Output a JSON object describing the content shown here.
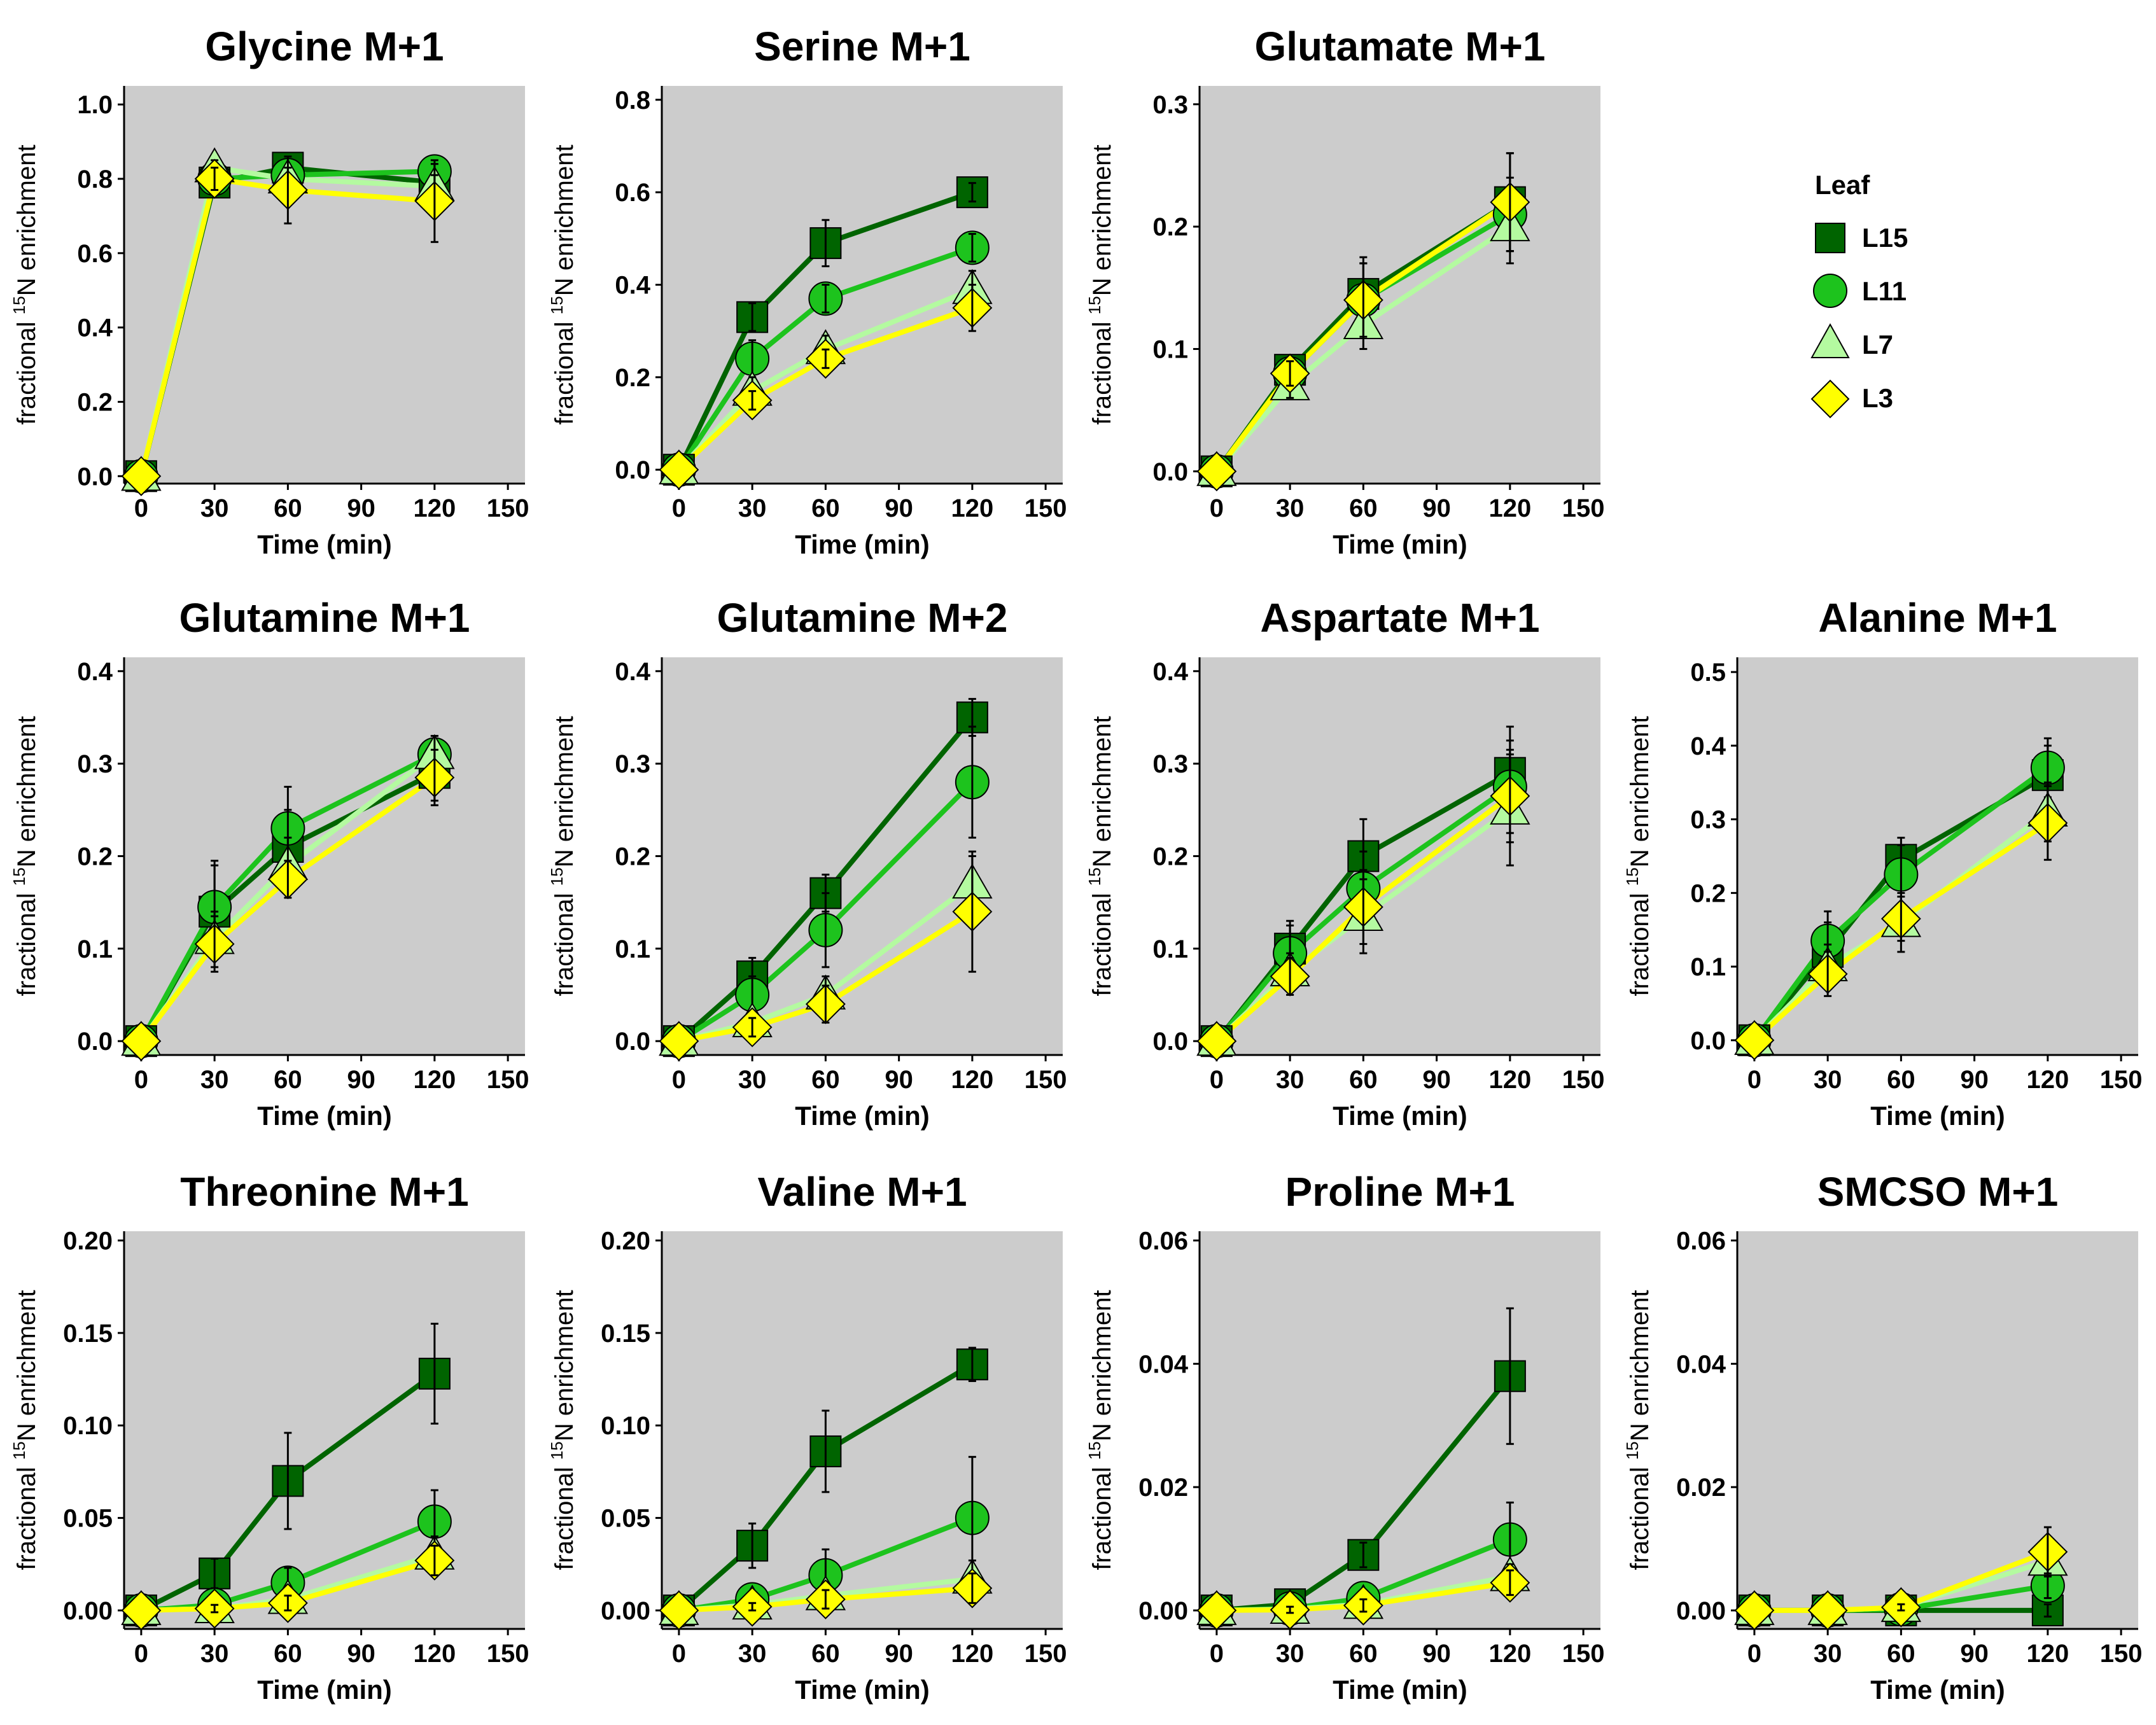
{
  "legend": {
    "title": "Leaf",
    "items": [
      {
        "key": "L15",
        "label": "L15",
        "color": "#006400",
        "shape": "square"
      },
      {
        "key": "L11",
        "label": "L11",
        "color": "#1DC31D",
        "shape": "circle"
      },
      {
        "key": "L7",
        "label": "L7",
        "color": "#B4FAA0",
        "shape": "triangle"
      },
      {
        "key": "L3",
        "label": "L3",
        "color": "#FFFF00",
        "shape": "diamond"
      }
    ]
  },
  "colors": {
    "panel_bg": "#CCCCCC",
    "page_bg": "#FFFFFF",
    "error_bar": "#000000"
  },
  "chart_data": [
    {
      "type": "line",
      "title": "Glycine M+1",
      "xlabel": "Time (min)",
      "ylabel_prefix": "fractional ",
      "ylabel_sup": "15",
      "ylabel_suffix": "N enrichment",
      "x": [
        0,
        30,
        60,
        120
      ],
      "xticks": [
        0,
        30,
        60,
        90,
        120,
        150
      ],
      "xlim": [
        -7,
        157
      ],
      "yticks": [
        0.0,
        0.2,
        0.4,
        0.6,
        0.8,
        1.0
      ],
      "ytick_labels": [
        "0.0",
        "0.2",
        "0.4",
        "0.6",
        "0.8",
        "1.0"
      ],
      "ylim": [
        -0.02,
        1.05
      ],
      "series": [
        {
          "name": "L15",
          "values": [
            0.0,
            0.79,
            0.83,
            0.79
          ],
          "errors": [
            0,
            0.02,
            0.02,
            0.02
          ]
        },
        {
          "name": "L11",
          "values": [
            0.0,
            0.8,
            0.81,
            0.82
          ],
          "errors": [
            0,
            0.02,
            0.02,
            0.02
          ]
        },
        {
          "name": "L7",
          "values": [
            0.0,
            0.83,
            0.8,
            0.78
          ],
          "errors": [
            0,
            0.02,
            0.03,
            0.03
          ]
        },
        {
          "name": "L3",
          "values": [
            0.0,
            0.8,
            0.77,
            0.74
          ],
          "errors": [
            0,
            0.03,
            0.09,
            0.11
          ]
        }
      ]
    },
    {
      "type": "line",
      "title": "Serine M+1",
      "xlabel": "Time (min)",
      "ylabel_prefix": "fractional ",
      "ylabel_sup": "15",
      "ylabel_suffix": "N enrichment",
      "x": [
        0,
        30,
        60,
        120
      ],
      "xticks": [
        0,
        30,
        60,
        90,
        120,
        150
      ],
      "xlim": [
        -7,
        157
      ],
      "yticks": [
        0.0,
        0.2,
        0.4,
        0.6,
        0.8
      ],
      "ytick_labels": [
        "0.0",
        "0.2",
        "0.4",
        "0.6",
        "0.8"
      ],
      "ylim": [
        -0.03,
        0.83
      ],
      "series": [
        {
          "name": "L15",
          "values": [
            0.0,
            0.33,
            0.49,
            0.6
          ],
          "errors": [
            0,
            0.03,
            0.05,
            0.02
          ]
        },
        {
          "name": "L11",
          "values": [
            0.0,
            0.24,
            0.37,
            0.48
          ],
          "errors": [
            0,
            0.04,
            0.03,
            0.03
          ]
        },
        {
          "name": "L7",
          "values": [
            0.0,
            0.17,
            0.26,
            0.39
          ],
          "errors": [
            0,
            0.03,
            0.03,
            0.04
          ]
        },
        {
          "name": "L3",
          "values": [
            0.0,
            0.15,
            0.24,
            0.35
          ],
          "errors": [
            0,
            0.02,
            0.02,
            0.05
          ]
        }
      ]
    },
    {
      "type": "line",
      "title": "Glutamate M+1",
      "xlabel": "Time (min)",
      "ylabel_prefix": "fractional ",
      "ylabel_sup": "15",
      "ylabel_suffix": "N enrichment",
      "x": [
        0,
        30,
        60,
        120
      ],
      "xticks": [
        0,
        30,
        60,
        90,
        120,
        150
      ],
      "xlim": [
        -7,
        157
      ],
      "yticks": [
        0.0,
        0.1,
        0.2,
        0.3
      ],
      "ytick_labels": [
        "0.0",
        "0.1",
        "0.2",
        "0.3"
      ],
      "ylim": [
        -0.01,
        0.315
      ],
      "series": [
        {
          "name": "L15",
          "values": [
            0.0,
            0.083,
            0.145,
            0.22
          ],
          "errors": [
            0,
            0.01,
            0.03,
            0.04
          ]
        },
        {
          "name": "L11",
          "values": [
            0.0,
            0.08,
            0.14,
            0.21
          ],
          "errors": [
            0,
            0.01,
            0.03,
            0.03
          ]
        },
        {
          "name": "L7",
          "values": [
            0.0,
            0.07,
            0.12,
            0.2
          ],
          "errors": [
            0,
            0.01,
            0.02,
            0.03
          ]
        },
        {
          "name": "L3",
          "values": [
            0.0,
            0.08,
            0.14,
            0.22
          ],
          "errors": [
            0,
            0.01,
            0.03,
            0.04
          ]
        }
      ]
    },
    {
      "type": "line",
      "title": "Glutamine M+1",
      "xlabel": "Time (min)",
      "ylabel_prefix": "fractional ",
      "ylabel_sup": "15",
      "ylabel_suffix": "N enrichment",
      "x": [
        0,
        30,
        60,
        120
      ],
      "xticks": [
        0,
        30,
        60,
        90,
        120,
        150
      ],
      "xlim": [
        -7,
        157
      ],
      "yticks": [
        0.0,
        0.1,
        0.2,
        0.3,
        0.4
      ],
      "ytick_labels": [
        "0.0",
        "0.1",
        "0.2",
        "0.3",
        "0.4"
      ],
      "ylim": [
        -0.015,
        0.415
      ],
      "series": [
        {
          "name": "L15",
          "values": [
            0.0,
            0.14,
            0.21,
            0.29
          ],
          "errors": [
            0,
            0.05,
            0.04,
            0.03
          ]
        },
        {
          "name": "L11",
          "values": [
            0.0,
            0.145,
            0.23,
            0.31
          ],
          "errors": [
            0,
            0.05,
            0.045,
            0.02
          ]
        },
        {
          "name": "L7",
          "values": [
            0.0,
            0.11,
            0.19,
            0.31
          ],
          "errors": [
            0,
            0.03,
            0.03,
            0.02
          ]
        },
        {
          "name": "L3",
          "values": [
            0.0,
            0.105,
            0.175,
            0.285
          ],
          "errors": [
            0,
            0.03,
            0.02,
            0.03
          ]
        }
      ]
    },
    {
      "type": "line",
      "title": "Glutamine M+2",
      "xlabel": "Time (min)",
      "ylabel_prefix": "fractional ",
      "ylabel_sup": "15",
      "ylabel_suffix": "N enrichment",
      "x": [
        0,
        30,
        60,
        120
      ],
      "xticks": [
        0,
        30,
        60,
        90,
        120,
        150
      ],
      "xlim": [
        -7,
        157
      ],
      "yticks": [
        0.0,
        0.1,
        0.2,
        0.3,
        0.4
      ],
      "ytick_labels": [
        "0.0",
        "0.1",
        "0.2",
        "0.3",
        "0.4"
      ],
      "ylim": [
        -0.015,
        0.415
      ],
      "series": [
        {
          "name": "L15",
          "values": [
            0.0,
            0.07,
            0.16,
            0.35
          ],
          "errors": [
            0,
            0.02,
            0.02,
            0.02
          ]
        },
        {
          "name": "L11",
          "values": [
            0.0,
            0.05,
            0.12,
            0.28
          ],
          "errors": [
            0,
            0.02,
            0.04,
            0.06
          ]
        },
        {
          "name": "L7",
          "values": [
            0.0,
            0.02,
            0.05,
            0.17
          ],
          "errors": [
            0,
            0.01,
            0.02,
            0.03
          ]
        },
        {
          "name": "L3",
          "values": [
            0.0,
            0.015,
            0.04,
            0.14
          ],
          "errors": [
            0,
            0.01,
            0.02,
            0.065
          ]
        }
      ]
    },
    {
      "type": "line",
      "title": "Aspartate M+1",
      "xlabel": "Time (min)",
      "ylabel_prefix": "fractional ",
      "ylabel_sup": "15",
      "ylabel_suffix": "N enrichment",
      "x": [
        0,
        30,
        60,
        120
      ],
      "xticks": [
        0,
        30,
        60,
        90,
        120,
        150
      ],
      "xlim": [
        -7,
        157
      ],
      "yticks": [
        0.0,
        0.1,
        0.2,
        0.3,
        0.4
      ],
      "ytick_labels": [
        "0.0",
        "0.1",
        "0.2",
        "0.3",
        "0.4"
      ],
      "ylim": [
        -0.015,
        0.415
      ],
      "series": [
        {
          "name": "L15",
          "values": [
            0.0,
            0.1,
            0.2,
            0.29
          ],
          "errors": [
            0,
            0.03,
            0.04,
            0.05
          ]
        },
        {
          "name": "L11",
          "values": [
            0.0,
            0.095,
            0.165,
            0.275
          ],
          "errors": [
            0,
            0.03,
            0.04,
            0.05
          ]
        },
        {
          "name": "L7",
          "values": [
            0.0,
            0.075,
            0.135,
            0.25
          ],
          "errors": [
            0,
            0.02,
            0.04,
            0.06
          ]
        },
        {
          "name": "L3",
          "values": [
            0.0,
            0.07,
            0.145,
            0.265
          ],
          "errors": [
            0,
            0.02,
            0.04,
            0.05
          ]
        }
      ]
    },
    {
      "type": "line",
      "title": "Alanine M+1",
      "xlabel": "Time (min)",
      "ylabel_prefix": "fractional ",
      "ylabel_sup": "15",
      "ylabel_suffix": "N enrichment",
      "x": [
        0,
        30,
        60,
        120
      ],
      "xticks": [
        0,
        30,
        60,
        90,
        120,
        150
      ],
      "xlim": [
        -7,
        157
      ],
      "yticks": [
        0.0,
        0.1,
        0.2,
        0.3,
        0.4,
        0.5
      ],
      "ytick_labels": [
        "0.0",
        "0.1",
        "0.2",
        "0.3",
        "0.4",
        "0.5"
      ],
      "ylim": [
        -0.02,
        0.52
      ],
      "series": [
        {
          "name": "L15",
          "values": [
            0.0,
            0.12,
            0.245,
            0.36
          ],
          "errors": [
            0,
            0.04,
            0.03,
            0.04
          ]
        },
        {
          "name": "L11",
          "values": [
            0.0,
            0.135,
            0.225,
            0.37
          ],
          "errors": [
            0,
            0.04,
            0.04,
            0.04
          ]
        },
        {
          "name": "L7",
          "values": [
            0.0,
            0.1,
            0.16,
            0.31
          ],
          "errors": [
            0,
            0.03,
            0.04,
            0.04
          ]
        },
        {
          "name": "L3",
          "values": [
            0.0,
            0.09,
            0.165,
            0.295
          ],
          "errors": [
            0,
            0.03,
            0.03,
            0.05
          ]
        }
      ]
    },
    {
      "type": "line",
      "title": "Threonine M+1",
      "xlabel": "Time (min)",
      "ylabel_prefix": "fractional ",
      "ylabel_sup": "15",
      "ylabel_suffix": "N enrichment",
      "x": [
        0,
        30,
        60,
        120
      ],
      "xticks": [
        0,
        30,
        60,
        90,
        120,
        150
      ],
      "xlim": [
        -7,
        157
      ],
      "yticks": [
        0.0,
        0.05,
        0.1,
        0.15,
        0.2
      ],
      "ytick_labels": [
        "0.00",
        "0.05",
        "0.10",
        "0.15",
        "0.20"
      ],
      "ylim": [
        -0.01,
        0.205
      ],
      "series": [
        {
          "name": "L15",
          "values": [
            0.0,
            0.02,
            0.07,
            0.128
          ],
          "errors": [
            0,
            0.008,
            0.026,
            0.027
          ]
        },
        {
          "name": "L11",
          "values": [
            0.0,
            0.003,
            0.015,
            0.048
          ],
          "errors": [
            0,
            0.004,
            0.008,
            0.017
          ]
        },
        {
          "name": "L7",
          "values": [
            0.0,
            0.001,
            0.006,
            0.03
          ],
          "errors": [
            0,
            0.002,
            0.005,
            0.01
          ]
        },
        {
          "name": "L3",
          "values": [
            0.0,
            0.001,
            0.004,
            0.027
          ],
          "errors": [
            0,
            0.002,
            0.004,
            0.008
          ]
        }
      ]
    },
    {
      "type": "line",
      "title": "Valine M+1",
      "xlabel": "Time (min)",
      "ylabel_prefix": "fractional ",
      "ylabel_sup": "15",
      "ylabel_suffix": "N enrichment",
      "x": [
        0,
        30,
        60,
        120
      ],
      "xticks": [
        0,
        30,
        60,
        90,
        120,
        150
      ],
      "xlim": [
        -7,
        157
      ],
      "yticks": [
        0.0,
        0.05,
        0.1,
        0.15,
        0.2
      ],
      "ytick_labels": [
        "0.00",
        "0.05",
        "0.10",
        "0.15",
        "0.20"
      ],
      "ylim": [
        -0.01,
        0.205
      ],
      "series": [
        {
          "name": "L15",
          "values": [
            0.0,
            0.035,
            0.086,
            0.133
          ],
          "errors": [
            0,
            0.012,
            0.022,
            0.009
          ]
        },
        {
          "name": "L11",
          "values": [
            0.0,
            0.006,
            0.019,
            0.05
          ],
          "errors": [
            0,
            0.004,
            0.014,
            0.033
          ]
        },
        {
          "name": "L7",
          "values": [
            0.0,
            0.003,
            0.008,
            0.017
          ],
          "errors": [
            0,
            0.002,
            0.005,
            0.01
          ]
        },
        {
          "name": "L3",
          "values": [
            0.0,
            0.002,
            0.006,
            0.012
          ],
          "errors": [
            0,
            0.002,
            0.005,
            0.008
          ]
        }
      ]
    },
    {
      "type": "line",
      "title": "Proline M+1",
      "xlabel": "Time (min)",
      "ylabel_prefix": "fractional ",
      "ylabel_sup": "15",
      "ylabel_suffix": "N enrichment",
      "x": [
        0,
        30,
        60,
        120
      ],
      "xticks": [
        0,
        30,
        60,
        90,
        120,
        150
      ],
      "xlim": [
        -7,
        157
      ],
      "yticks": [
        0.0,
        0.02,
        0.04,
        0.06
      ],
      "ytick_labels": [
        "0.00",
        "0.02",
        "0.04",
        "0.06"
      ],
      "ylim": [
        -0.003,
        0.0615
      ],
      "series": [
        {
          "name": "L15",
          "values": [
            0.0,
            0.001,
            0.009,
            0.038
          ],
          "errors": [
            0,
            0.001,
            0.002,
            0.011
          ]
        },
        {
          "name": "L11",
          "values": [
            0.0,
            0.0003,
            0.002,
            0.0115
          ],
          "errors": [
            0,
            0.0005,
            0.001,
            0.006
          ]
        },
        {
          "name": "L7",
          "values": [
            0.0,
            0.0002,
            0.001,
            0.0055
          ],
          "errors": [
            0,
            0.0005,
            0.001,
            0.002
          ]
        },
        {
          "name": "L3",
          "values": [
            0.0,
            0.0001,
            0.0008,
            0.0045
          ],
          "errors": [
            0,
            0.0005,
            0.001,
            0.002
          ]
        }
      ]
    },
    {
      "type": "line",
      "title": "SMCSO M+1",
      "xlabel": "Time (min)",
      "ylabel_prefix": "fractional ",
      "ylabel_sup": "15",
      "ylabel_suffix": "N enrichment",
      "x": [
        0,
        30,
        60,
        120
      ],
      "xticks": [
        0,
        30,
        60,
        90,
        120,
        150
      ],
      "xlim": [
        -7,
        157
      ],
      "yticks": [
        0.0,
        0.02,
        0.04,
        0.06
      ],
      "ytick_labels": [
        "0.00",
        "0.02",
        "0.04",
        "0.06"
      ],
      "ylim": [
        -0.003,
        0.0615
      ],
      "series": [
        {
          "name": "L15",
          "values": [
            0.0,
            0.0,
            0.0,
            0.0
          ],
          "errors": [
            0,
            0,
            0,
            0.001
          ]
        },
        {
          "name": "L11",
          "values": [
            0.0,
            0.0,
            0.0002,
            0.004
          ],
          "errors": [
            0,
            0,
            0.0005,
            0.002
          ]
        },
        {
          "name": "L7",
          "values": [
            0.0,
            0.0,
            0.0005,
            0.008
          ],
          "errors": [
            0,
            0,
            0.0005,
            0.002
          ]
        },
        {
          "name": "L3",
          "values": [
            0.0,
            0.0,
            0.0005,
            0.0095
          ],
          "errors": [
            0,
            0,
            0.0005,
            0.004
          ]
        }
      ]
    }
  ]
}
